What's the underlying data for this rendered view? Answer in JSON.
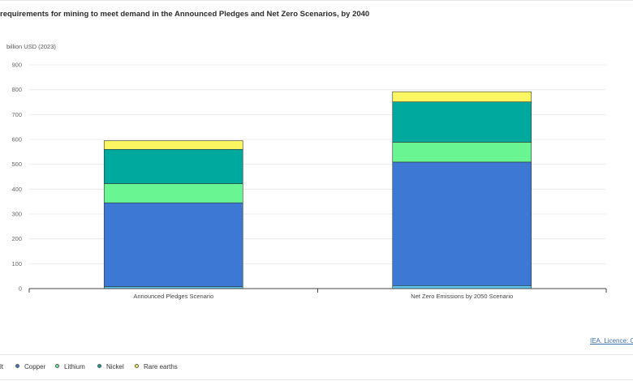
{
  "chart_data": {
    "type": "bar",
    "stacked": true,
    "title": "requirements for mining to meet demand in the Announced Pledges and Net Zero Scenarios, by 2040",
    "ylabel": "billion USD (2023)",
    "ylim": [
      0,
      900
    ],
    "yticks": [
      0,
      100,
      200,
      300,
      400,
      500,
      600,
      700,
      800,
      900
    ],
    "categories": [
      "Announced Pledges Scenario",
      "Net Zero Emissions by 2050 Scenario"
    ],
    "series": [
      {
        "name": "lt",
        "color": "#5cc8f0",
        "values": [
          8,
          12
        ]
      },
      {
        "name": "Copper",
        "color": "#3d79d4",
        "values": [
          337,
          497
        ]
      },
      {
        "name": "Lithium",
        "color": "#6af593",
        "values": [
          77,
          80
        ]
      },
      {
        "name": "Nickel",
        "color": "#00a99d",
        "values": [
          138,
          162
        ]
      },
      {
        "name": "Rare earths",
        "color": "#fcf662",
        "values": [
          35,
          41
        ]
      }
    ],
    "grid": true,
    "legend_position": "bottom"
  },
  "source": {
    "label": "IEA. Licence: C"
  }
}
